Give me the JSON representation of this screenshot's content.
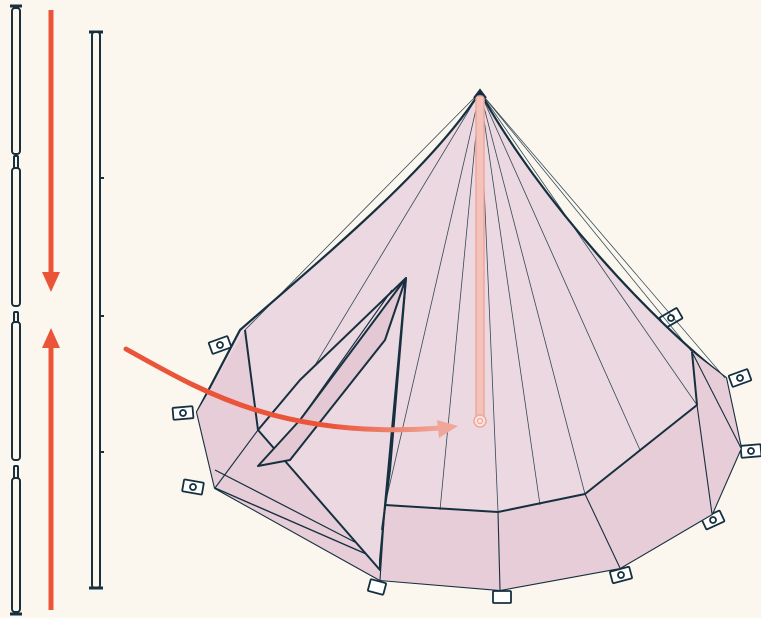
{
  "colors": {
    "background": "#fbf7ef",
    "outline": "#163040",
    "tent_fill": "#ecd8e0",
    "tent_shade": "#e4c9d4",
    "arrow": "#ea553a",
    "center_pole": "#f0a79a",
    "peg_fill": "#ffffff"
  },
  "icons": {
    "sectioned_pole": "pole-sections-icon",
    "assembled_pole": "assembled-pole-icon",
    "insert_arrow": "curved-arrow-icon",
    "join_arrow_down": "arrow-down-icon",
    "join_arrow_up": "arrow-up-icon",
    "tent": "bell-tent-icon"
  }
}
